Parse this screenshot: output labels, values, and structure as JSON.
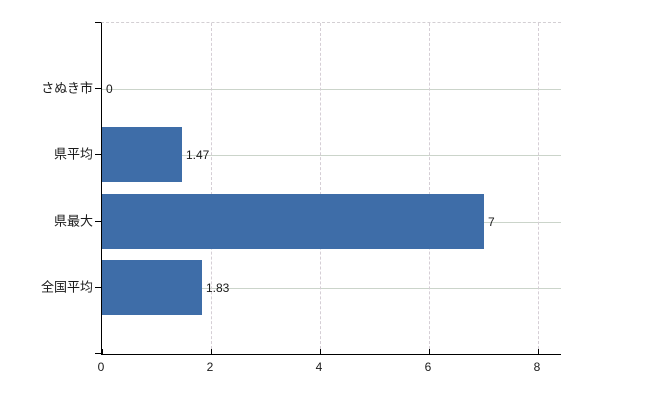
{
  "chart_data": {
    "type": "bar",
    "orientation": "horizontal",
    "title": "",
    "xlabel": "",
    "ylabel": "",
    "categories": [
      "さぬき市",
      "県平均",
      "県最大",
      "全国平均"
    ],
    "values": [
      0,
      1.47,
      7,
      1.83
    ],
    "value_labels": [
      "0",
      "1.47",
      "7",
      "1.83"
    ],
    "x_ticks": [
      0,
      2,
      4,
      6,
      8
    ],
    "x_tick_labels": [
      "0",
      "2",
      "4",
      "6",
      "8"
    ],
    "xlim": [
      0,
      8.42
    ],
    "legend": "none",
    "grid": {
      "horizontal": "solid",
      "vertical": "dashed",
      "top_border": "dashed"
    },
    "colors": {
      "bar": "#3e6da8",
      "axis": "#000000",
      "hgrid": "#cbd4ca",
      "vgrid": "#d5ced5",
      "top_border": "#d3cfd3",
      "text": "#1a1a1a",
      "background": "#ffffff"
    }
  }
}
